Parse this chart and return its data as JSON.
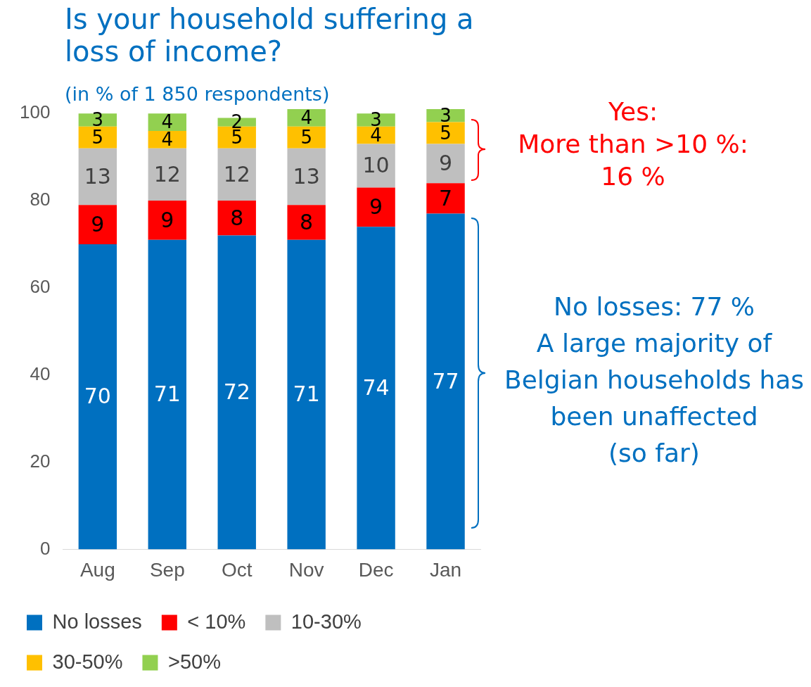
{
  "chart_data": {
    "type": "bar",
    "title": "Is your household suffering a loss of income?",
    "subtitle": "(in % of 1 850 respondents)",
    "categories": [
      "Aug",
      "Sep",
      "Oct",
      "Nov",
      "Dec",
      "Jan"
    ],
    "stacked": true,
    "series": [
      {
        "name": "No losses",
        "color": "#0070c0",
        "values": [
          70,
          71,
          72,
          71,
          74,
          77
        ]
      },
      {
        "name": "< 10%",
        "color": "#ff0000",
        "values": [
          9,
          9,
          8,
          8,
          9,
          7
        ]
      },
      {
        "name": "10-30%",
        "color": "#bfbfbf",
        "values": [
          13,
          12,
          12,
          13,
          10,
          9
        ]
      },
      {
        "name": "30-50%",
        "color": "#ffc000",
        "values": [
          5,
          4,
          5,
          5,
          4,
          5
        ]
      },
      {
        "name": ">50%",
        "color": "#92d050",
        "values": [
          3,
          4,
          2,
          4,
          3,
          3
        ]
      }
    ],
    "ylim": [
      0,
      101
    ],
    "yticks": [
      0,
      20,
      40,
      60,
      80,
      100
    ],
    "grid": false,
    "legend": "bottom",
    "data_labels": true,
    "annotations": [
      "Yes:\nMore than >10 %:\n16 %",
      "No losses: 77 %\nA large majority of Belgian households has been unaffected\n(so far)"
    ]
  }
}
